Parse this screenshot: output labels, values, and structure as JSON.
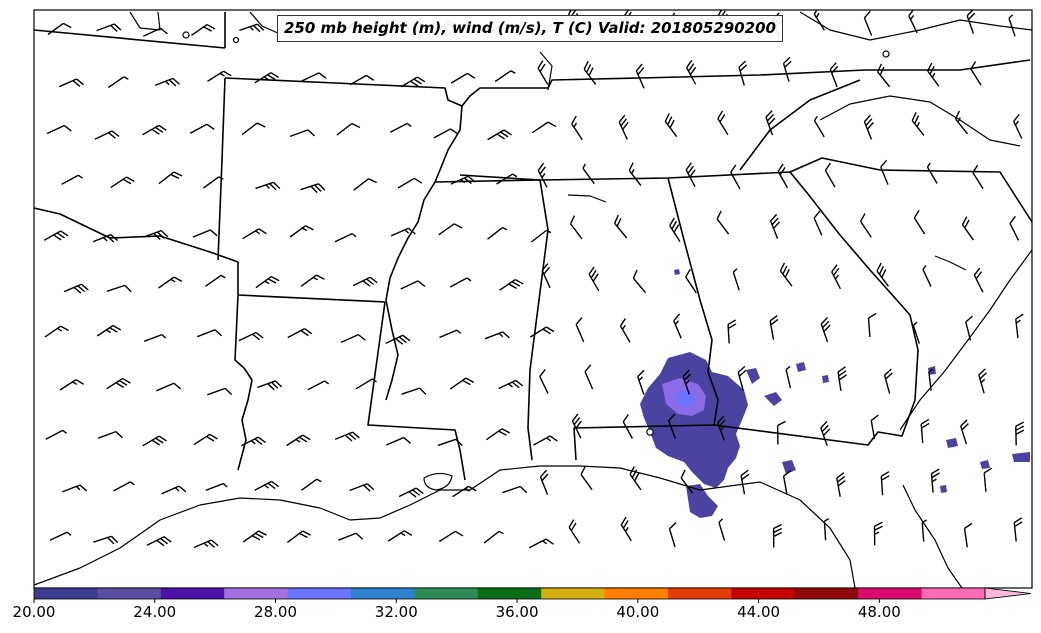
{
  "title": "250 mb height (m), wind (m/s), T (C) Valid: 201805290200",
  "colorbar": {
    "ticks": [
      "20.00",
      "24.00",
      "28.00",
      "32.00",
      "36.00",
      "40.00",
      "44.00",
      "48.00"
    ],
    "min": 20,
    "max": 51.5,
    "step": 2,
    "colors": [
      "#3b3b8f",
      "#5a4ea0",
      "#4a12a6",
      "#a66fe0",
      "#6b73ff",
      "#2f7fcf",
      "#2e8b57",
      "#0a6e16",
      "#d4b00f",
      "#ff7f00",
      "#e33b05",
      "#c40000",
      "#8f0b0b",
      "#dc0a6e",
      "#ff69b4",
      "#ffb6dd"
    ],
    "extend": "max"
  },
  "wind_barb_color": "#000000",
  "boundary_color": "#000000"
}
